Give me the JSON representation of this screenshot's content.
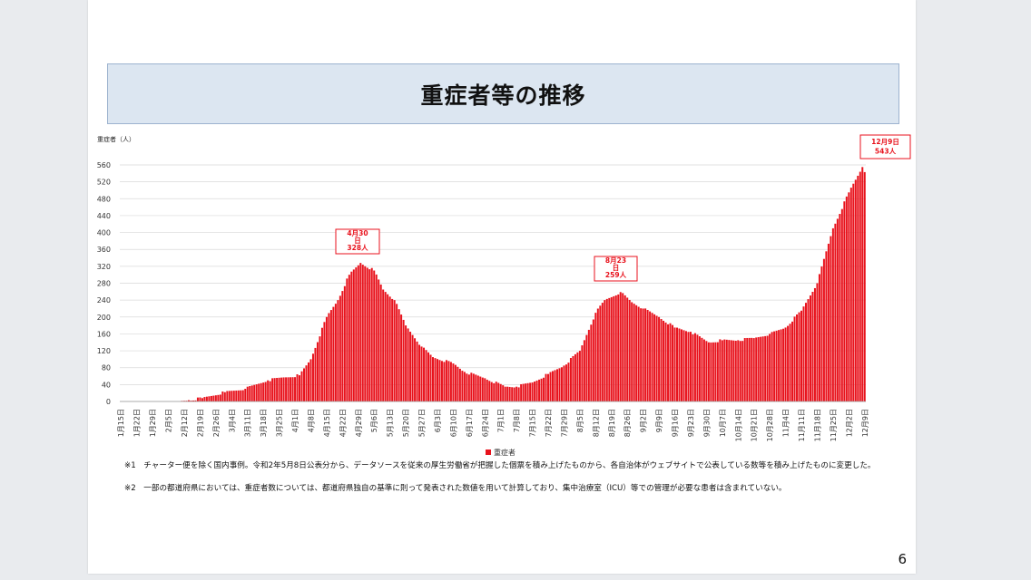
{
  "slide": {
    "title": "重症者等の推移",
    "page_number": "6",
    "notes": [
      "※1　チャーター便を除く国内事例。令和2年5月8日公表分から、データソースを従来の厚生労働省が把握した個票を積み上げたものから、各自治体がウェブサイトで公表している数等を積み上げたものに変更した。",
      "※2　一部の都道府県においては、重症者数については、都道府県独自の基準に則って発表された数値を用いて計算しており、集中治療室（ICU）等での管理が必要な患者は含まれていない。"
    ]
  },
  "colors": {
    "bar": "#e8121c",
    "callout_border": "#e8121c",
    "callout_text": "#e8121c",
    "banner_bg": "#dce6f1",
    "grid": "#d9d9d9"
  },
  "chart_data": {
    "type": "bar",
    "ylabel": "重症者（人）",
    "ylim": [
      0,
      560
    ],
    "yticks": [
      0,
      40,
      80,
      120,
      160,
      200,
      240,
      280,
      320,
      360,
      400,
      440,
      480,
      520,
      560
    ],
    "x_tick_labels": [
      "1月15日",
      "1月22日",
      "1月29日",
      "2月5日",
      "2月12日",
      "2月19日",
      "2月26日",
      "3月4日",
      "3月11日",
      "3月18日",
      "3月25日",
      "4月1日",
      "4月8日",
      "4月15日",
      "4月22日",
      "4月29日",
      "5月6日",
      "5月13日",
      "5月20日",
      "5月27日",
      "6月3日",
      "6月10日",
      "6月17日",
      "6月24日",
      "7月1日",
      "7月8日",
      "7月15日",
      "7月22日",
      "7月29日",
      "8月5日",
      "8月12日",
      "8月19日",
      "8月26日",
      "9月2日",
      "9月9日",
      "9月16日",
      "9月23日",
      "9月30日",
      "10月7日",
      "10月14日",
      "10月21日",
      "10月28日",
      "11月4日",
      "11月11日",
      "11月18日",
      "11月25日",
      "12月2日",
      "12月9日"
    ],
    "grid": true,
    "legend": {
      "position": "bottom",
      "entries": [
        "重症者"
      ]
    },
    "series": [
      {
        "name": "重症者",
        "color": "#e8121c",
        "keypoints": [
          {
            "date": "2020-01-15",
            "value": 0
          },
          {
            "date": "2020-02-10",
            "value": 0
          },
          {
            "date": "2020-02-14",
            "value": 3
          },
          {
            "date": "2020-02-20",
            "value": 8
          },
          {
            "date": "2020-03-01",
            "value": 22
          },
          {
            "date": "2020-03-10",
            "value": 30
          },
          {
            "date": "2020-03-20",
            "value": 50
          },
          {
            "date": "2020-03-27",
            "value": 57
          },
          {
            "date": "2020-04-03",
            "value": 62
          },
          {
            "date": "2020-04-08",
            "value": 100
          },
          {
            "date": "2020-04-15",
            "value": 200
          },
          {
            "date": "2020-04-20",
            "value": 240
          },
          {
            "date": "2020-04-25",
            "value": 300
          },
          {
            "date": "2020-04-30",
            "value": 328
          },
          {
            "date": "2020-05-06",
            "value": 310
          },
          {
            "date": "2020-05-10",
            "value": 265
          },
          {
            "date": "2020-05-15",
            "value": 240
          },
          {
            "date": "2020-05-20",
            "value": 180
          },
          {
            "date": "2020-05-27",
            "value": 130
          },
          {
            "date": "2020-06-01",
            "value": 105
          },
          {
            "date": "2020-06-10",
            "value": 90
          },
          {
            "date": "2020-06-15",
            "value": 70
          },
          {
            "date": "2020-06-24",
            "value": 55
          },
          {
            "date": "2020-07-03",
            "value": 35
          },
          {
            "date": "2020-07-08",
            "value": 35
          },
          {
            "date": "2020-07-15",
            "value": 45
          },
          {
            "date": "2020-07-22",
            "value": 65
          },
          {
            "date": "2020-07-29",
            "value": 85
          },
          {
            "date": "2020-08-05",
            "value": 120
          },
          {
            "date": "2020-08-12",
            "value": 210
          },
          {
            "date": "2020-08-16",
            "value": 240
          },
          {
            "date": "2020-08-23",
            "value": 259
          },
          {
            "date": "2020-08-28",
            "value": 235
          },
          {
            "date": "2020-09-02",
            "value": 220
          },
          {
            "date": "2020-09-09",
            "value": 200
          },
          {
            "date": "2020-09-16",
            "value": 175
          },
          {
            "date": "2020-09-23",
            "value": 165
          },
          {
            "date": "2020-10-01",
            "value": 140
          },
          {
            "date": "2020-10-07",
            "value": 145
          },
          {
            "date": "2020-10-14",
            "value": 145
          },
          {
            "date": "2020-10-21",
            "value": 150
          },
          {
            "date": "2020-10-28",
            "value": 160
          },
          {
            "date": "2020-11-04",
            "value": 175
          },
          {
            "date": "2020-11-11",
            "value": 215
          },
          {
            "date": "2020-11-18",
            "value": 280
          },
          {
            "date": "2020-11-25",
            "value": 410
          },
          {
            "date": "2020-12-02",
            "value": 495
          },
          {
            "date": "2020-12-08",
            "value": 555
          },
          {
            "date": "2020-12-09",
            "value": 543
          }
        ]
      }
    ],
    "annotations": [
      {
        "date": "2020-04-30",
        "lines": [
          "4月30",
          "日",
          "328人"
        ]
      },
      {
        "date": "2020-08-23",
        "lines": [
          "8月23",
          "日",
          "259人"
        ]
      },
      {
        "date": "2020-12-09",
        "lines": [
          "12月9日",
          "543人"
        ]
      }
    ]
  }
}
